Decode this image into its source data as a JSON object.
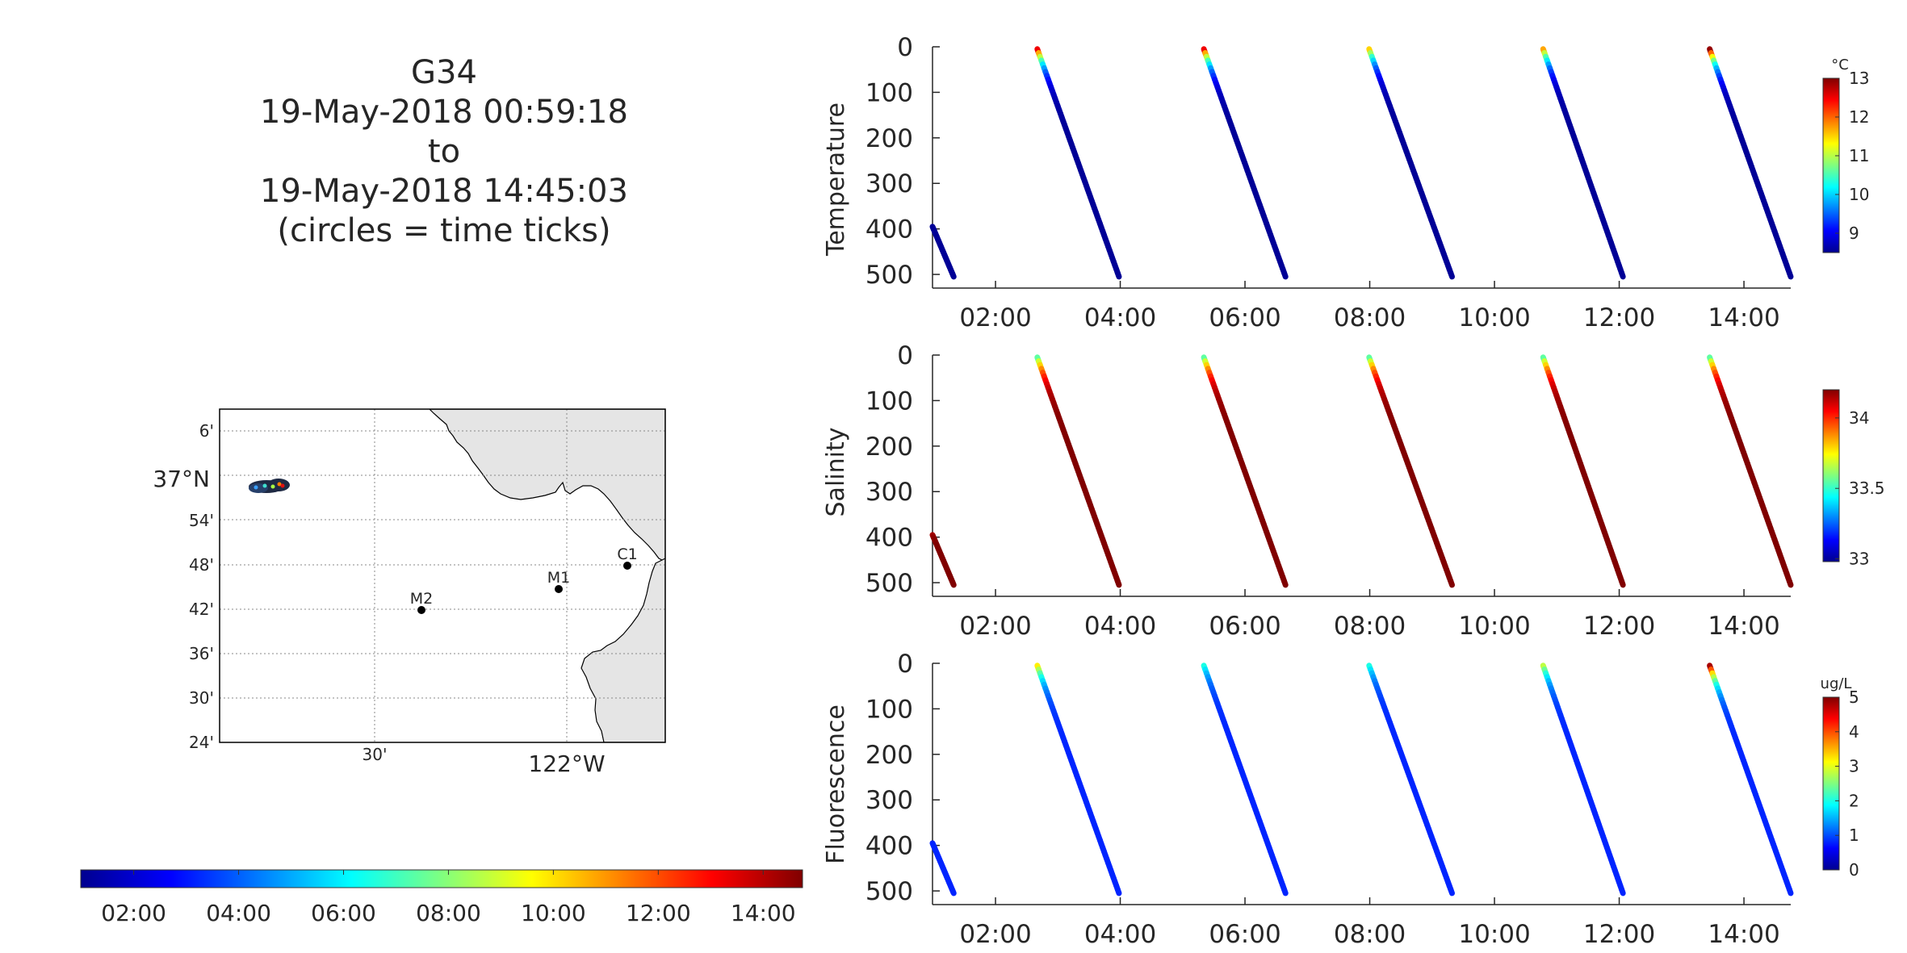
{
  "figure": {
    "title_lines": [
      "G34",
      "19-May-2018 00:59:18",
      "to",
      "19-May-2018 14:45:03",
      "(circles = time ticks)"
    ]
  },
  "map": {
    "lat_labels": [
      "6'",
      "37°N",
      "54'",
      "48'",
      "42'",
      "36'",
      "30'",
      "24'"
    ],
    "lon_labels": [
      "30'",
      "122°W"
    ],
    "stations": [
      {
        "name": "C1",
        "lon": -121.85,
        "lat": 36.8
      },
      {
        "name": "M1",
        "lon": -122.02,
        "lat": 36.75
      },
      {
        "name": "M2",
        "lon": -122.39,
        "lat": 36.7
      }
    ],
    "land_color": "#e5e5e5",
    "track_color": "#1f2a44"
  },
  "time_colorbar": {
    "tick_labels": [
      "02:00",
      "04:00",
      "06:00",
      "08:00",
      "10:00",
      "12:00",
      "14:00"
    ],
    "colormap": "jet"
  },
  "chart_data": [
    {
      "type": "scatter",
      "ylabel": "Temperature",
      "x_tick_labels": [
        "02:00",
        "04:00",
        "06:00",
        "08:00",
        "10:00",
        "12:00",
        "14:00"
      ],
      "y_tick_labels": [
        "0",
        "100",
        "200",
        "300",
        "400",
        "500"
      ],
      "ylim": [
        0,
        530
      ],
      "y_reversed": true,
      "xlim_hours": [
        0.99,
        14.75
      ],
      "colorbar": {
        "unit": "°C",
        "ticks": [
          "9",
          "10",
          "11",
          "12",
          "13"
        ],
        "range": [
          8.5,
          13.0
        ]
      },
      "profiles": [
        {
          "t_start": 0.99,
          "t_end": 1.33,
          "depth_start": 395,
          "depth_end": 505,
          "surface_value": 8.6,
          "deep_value": 8.6
        },
        {
          "t_start": 2.67,
          "t_end": 3.98,
          "depth_start": 5,
          "depth_end": 505,
          "surface_value": 12.5,
          "deep_value": 8.6
        },
        {
          "t_start": 5.34,
          "t_end": 6.65,
          "depth_start": 5,
          "depth_end": 505,
          "surface_value": 12.5,
          "deep_value": 8.6
        },
        {
          "t_start": 7.99,
          "t_end": 9.32,
          "depth_start": 5,
          "depth_end": 505,
          "surface_value": 11.5,
          "deep_value": 8.6
        },
        {
          "t_start": 10.78,
          "t_end": 12.06,
          "depth_start": 5,
          "depth_end": 505,
          "surface_value": 11.7,
          "deep_value": 8.6
        },
        {
          "t_start": 13.45,
          "t_end": 14.75,
          "depth_start": 5,
          "depth_end": 505,
          "surface_value": 12.9,
          "deep_value": 8.6
        }
      ]
    },
    {
      "type": "scatter",
      "ylabel": "Salinity",
      "x_tick_labels": [
        "02:00",
        "04:00",
        "06:00",
        "08:00",
        "10:00",
        "12:00",
        "14:00"
      ],
      "y_tick_labels": [
        "0",
        "100",
        "200",
        "300",
        "400",
        "500"
      ],
      "ylim": [
        0,
        530
      ],
      "y_reversed": true,
      "xlim_hours": [
        0.99,
        14.75
      ],
      "colorbar": {
        "unit": "",
        "ticks": [
          "33",
          "33.5",
          "34"
        ],
        "range": [
          32.98,
          34.2
        ]
      },
      "profiles": [
        {
          "t_start": 0.99,
          "t_end": 1.33,
          "depth_start": 395,
          "depth_end": 505,
          "surface_value": 34.15,
          "deep_value": 34.2
        },
        {
          "t_start": 2.67,
          "t_end": 3.98,
          "depth_start": 5,
          "depth_end": 505,
          "surface_value": 33.55,
          "deep_value": 34.2
        },
        {
          "t_start": 5.34,
          "t_end": 6.65,
          "depth_start": 5,
          "depth_end": 505,
          "surface_value": 33.55,
          "deep_value": 34.2
        },
        {
          "t_start": 7.99,
          "t_end": 9.32,
          "depth_start": 5,
          "depth_end": 505,
          "surface_value": 33.55,
          "deep_value": 34.2
        },
        {
          "t_start": 10.78,
          "t_end": 12.06,
          "depth_start": 5,
          "depth_end": 505,
          "surface_value": 33.55,
          "deep_value": 34.2
        },
        {
          "t_start": 13.45,
          "t_end": 14.75,
          "depth_start": 5,
          "depth_end": 505,
          "surface_value": 33.55,
          "deep_value": 34.2
        }
      ]
    },
    {
      "type": "scatter",
      "ylabel": "Fluorescence",
      "x_tick_labels": [
        "02:00",
        "04:00",
        "06:00",
        "08:00",
        "10:00",
        "12:00",
        "14:00"
      ],
      "y_tick_labels": [
        "0",
        "100",
        "200",
        "300",
        "400",
        "500"
      ],
      "ylim": [
        0,
        530
      ],
      "y_reversed": true,
      "xlim_hours": [
        0.99,
        14.75
      ],
      "colorbar": {
        "unit": "ug/L",
        "ticks": [
          "0",
          "1",
          "2",
          "3",
          "4",
          "5"
        ],
        "range": [
          0,
          5
        ]
      },
      "profiles": [
        {
          "t_start": 0.99,
          "t_end": 1.33,
          "depth_start": 395,
          "depth_end": 505,
          "surface_value": 0.8,
          "deep_value": 0.8
        },
        {
          "t_start": 2.67,
          "t_end": 3.98,
          "depth_start": 5,
          "depth_end": 505,
          "surface_value": 3.2,
          "deep_value": 0.8
        },
        {
          "t_start": 5.34,
          "t_end": 6.65,
          "depth_start": 5,
          "depth_end": 505,
          "surface_value": 2.0,
          "deep_value": 0.8
        },
        {
          "t_start": 7.99,
          "t_end": 9.32,
          "depth_start": 5,
          "depth_end": 505,
          "surface_value": 2.0,
          "deep_value": 0.8
        },
        {
          "t_start": 10.78,
          "t_end": 12.06,
          "depth_start": 5,
          "depth_end": 505,
          "surface_value": 2.8,
          "deep_value": 0.8
        },
        {
          "t_start": 13.45,
          "t_end": 14.75,
          "depth_start": 5,
          "depth_end": 505,
          "surface_value": 4.8,
          "deep_value": 0.8
        }
      ]
    }
  ]
}
